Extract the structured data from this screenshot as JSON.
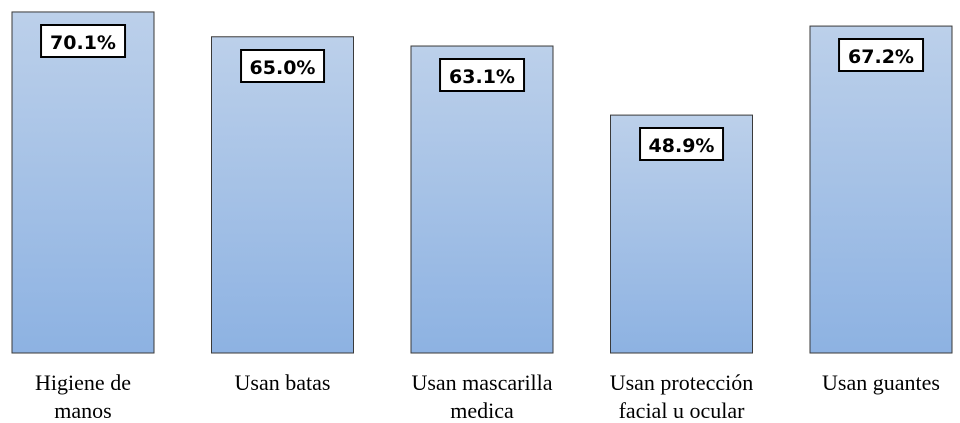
{
  "chart_data": {
    "type": "bar",
    "categories": [
      "Higiene de\nmanos",
      "Usan batas",
      "Usan mascarilla\nmedica",
      "Usan protección\nfacial u ocular",
      "Usan guantes"
    ],
    "values": [
      70.1,
      65.0,
      63.1,
      48.9,
      67.2
    ],
    "value_labels": [
      "70.1%",
      "65.0%",
      "63.1%",
      "48.9%",
      "67.2%"
    ],
    "color": "#a3bfe3"
  }
}
